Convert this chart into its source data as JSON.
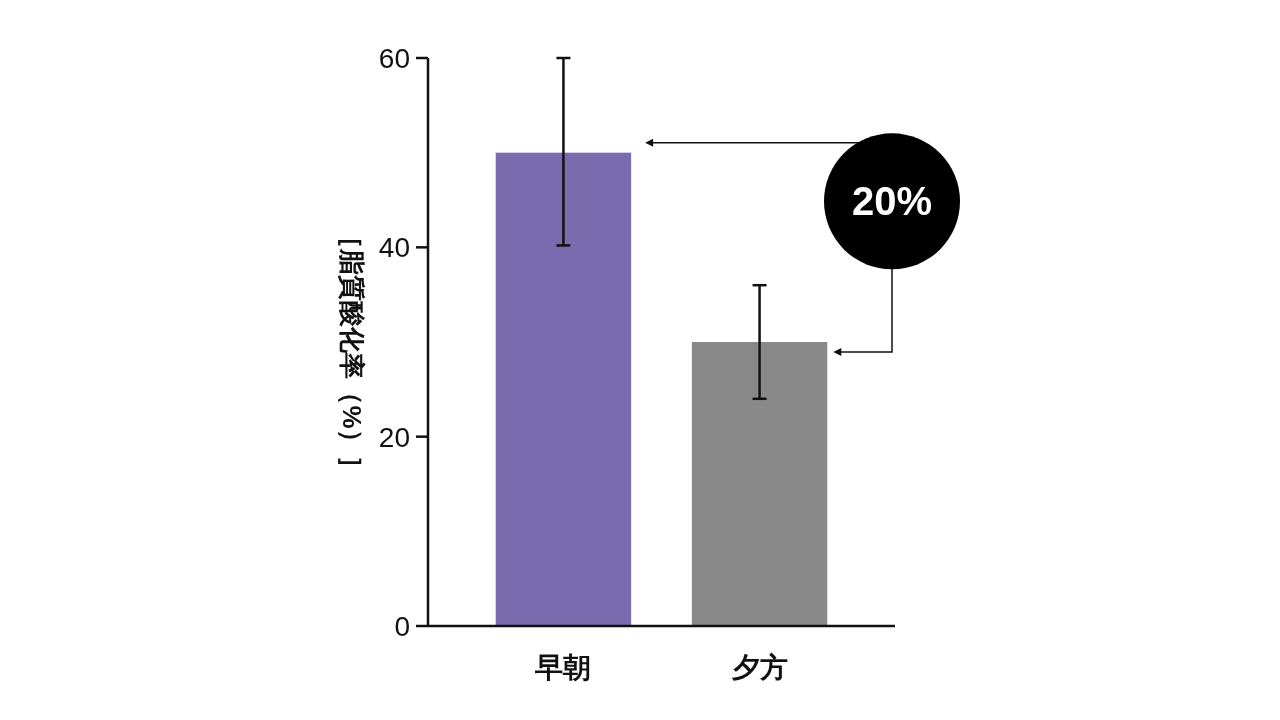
{
  "chart_data": {
    "type": "bar",
    "ylabel": "［脂質酸化率（%）］",
    "categories": [
      "早朝",
      "夕方"
    ],
    "values": [
      50,
      30
    ],
    "colors": [
      "#796bae",
      "#898989"
    ],
    "errors": [
      [
        40.2,
        60
      ],
      [
        24,
        36
      ]
    ],
    "ylim": [
      0,
      60
    ],
    "yticks": [
      0,
      20,
      40,
      60
    ],
    "grid": false,
    "annotations": [
      "20%"
    ]
  }
}
